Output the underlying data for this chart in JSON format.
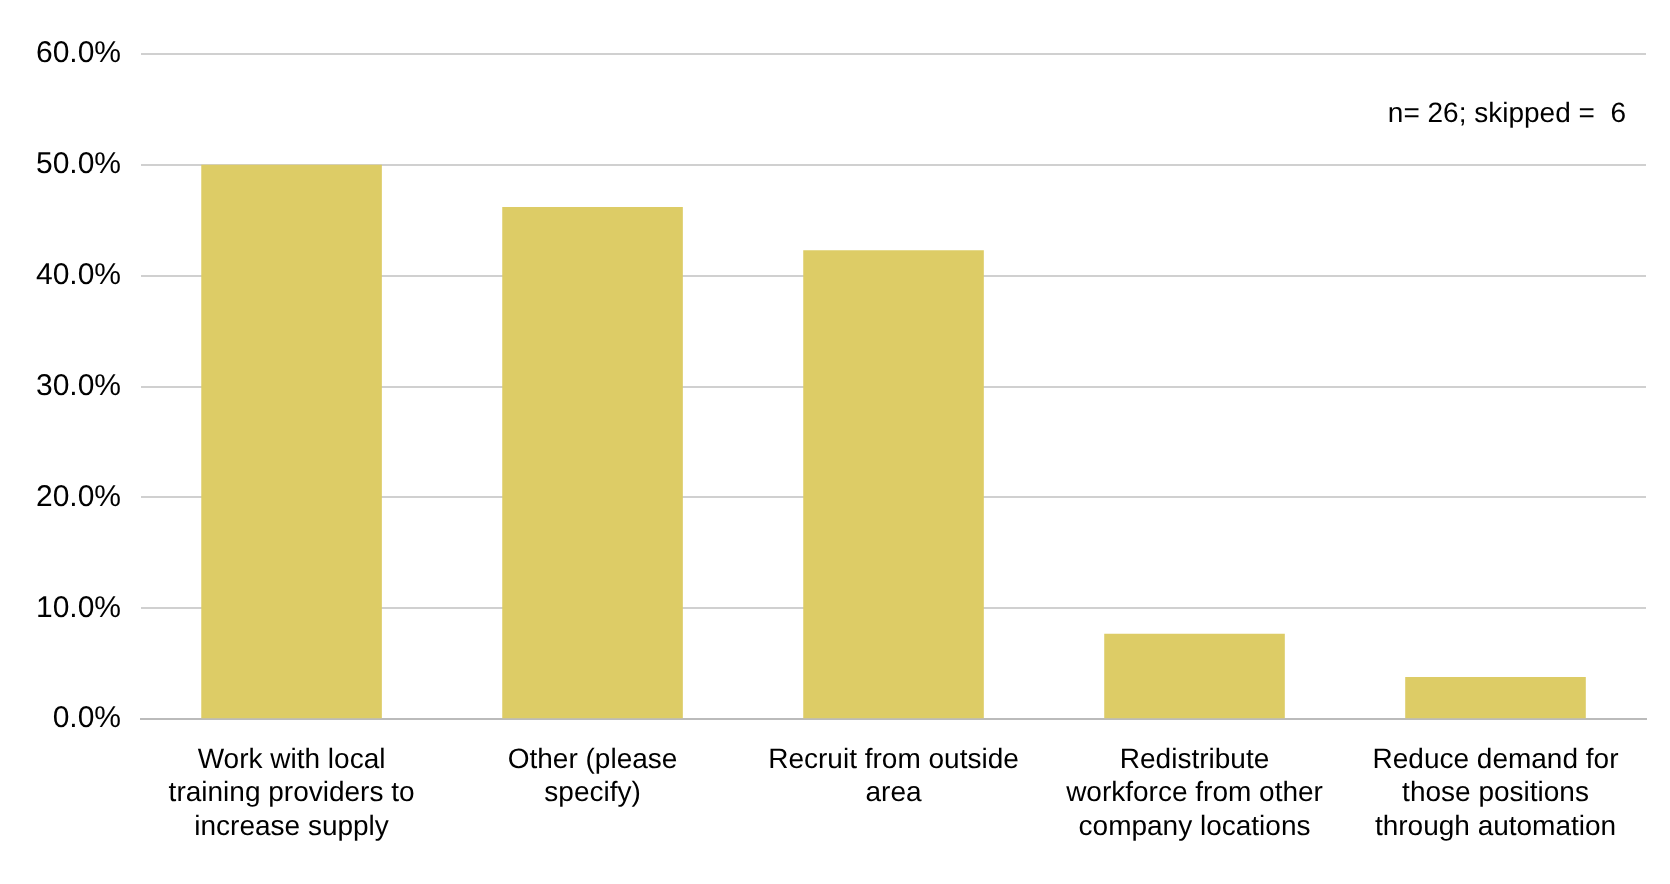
{
  "chart_data": {
    "type": "bar",
    "categories": [
      "Work with local training providers to increase supply",
      "Other (please specify)",
      "Recruit from outside area",
      "Redistribute workforce from other company locations",
      "Reduce demand for those positions through automation"
    ],
    "values": [
      50.0,
      46.2,
      42.3,
      7.7,
      3.8
    ],
    "color": "#ddcc66",
    "ylim": [
      0,
      60
    ],
    "yticks": [
      {
        "value": 0,
        "label": "0.0%"
      },
      {
        "value": 10,
        "label": "10.0%"
      },
      {
        "value": 20,
        "label": "20.0%"
      },
      {
        "value": 30,
        "label": "30.0%"
      },
      {
        "value": 40,
        "label": "40.0%"
      },
      {
        "value": 50,
        "label": "50.0%"
      },
      {
        "value": 60,
        "label": "60.0%"
      }
    ],
    "grid": "y",
    "annotations": [
      "n= 26; skipped =  6"
    ]
  }
}
